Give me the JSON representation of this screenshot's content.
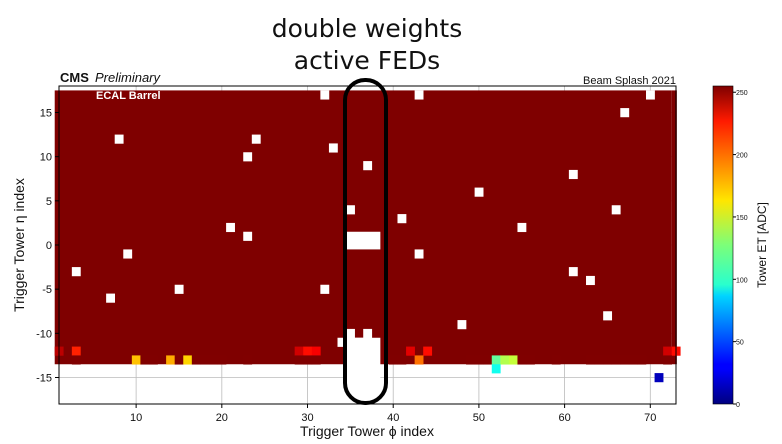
{
  "annotation": {
    "line1": "double weights",
    "line2": "active FEDs"
  },
  "header": {
    "cms": "CMS",
    "preliminary": "Preliminary",
    "run": "Beam Splash 2021",
    "inset": "ECAL Barrel"
  },
  "colorbar": {
    "label": "Tower ET [ADC]",
    "ticks": [
      "0",
      "50",
      "100",
      "150",
      "200",
      "250"
    ]
  },
  "chart_data": {
    "type": "heatmap",
    "title": "",
    "xlabel": "Trigger Tower ϕ index",
    "ylabel": "Trigger Tower η index",
    "xlim": [
      1,
      73
    ],
    "ylim": [
      -18,
      18
    ],
    "xticks": [
      10,
      20,
      30,
      40,
      50,
      60,
      70
    ],
    "yticks": [
      -15,
      -10,
      -5,
      0,
      5,
      10,
      15
    ],
    "zlim": [
      0,
      255
    ],
    "grid": true,
    "colormap": "jet",
    "background_value": 255,
    "filled_region": {
      "phi": [
        1,
        72
      ],
      "eta": [
        -13,
        17
      ],
      "value": 255
    },
    "empty_cells": [
      [
        32,
        17
      ],
      [
        43,
        17
      ],
      [
        70,
        17
      ],
      [
        67,
        15
      ],
      [
        24,
        12
      ],
      [
        8,
        12
      ],
      [
        33,
        11
      ],
      [
        23,
        10
      ],
      [
        37,
        9
      ],
      [
        61,
        8
      ],
      [
        66,
        4
      ],
      [
        35,
        4
      ],
      [
        50,
        6
      ],
      [
        41,
        3
      ],
      [
        21,
        2
      ],
      [
        55,
        2
      ],
      [
        23,
        1
      ],
      [
        9,
        -1
      ],
      [
        43,
        -1
      ],
      [
        3,
        -3
      ],
      [
        61,
        -3
      ],
      [
        63,
        -4
      ],
      [
        15,
        -5
      ],
      [
        32,
        -5
      ],
      [
        7,
        -6
      ],
      [
        65,
        -8
      ],
      [
        48,
        -9
      ],
      [
        35,
        -10
      ],
      [
        37,
        -10
      ],
      [
        34,
        -11
      ],
      [
        36,
        -11
      ]
    ],
    "empty_blocks": [
      {
        "phi": [
          35,
          38
        ],
        "eta": [
          0,
          1
        ]
      },
      {
        "phi": [
          35,
          38
        ],
        "eta": [
          -18,
          -11
        ]
      }
    ],
    "partial_row": {
      "eta": -12,
      "cells": [
        [
          1,
          240
        ],
        [
          3,
          215
        ],
        [
          29,
          235
        ],
        [
          30,
          220
        ],
        [
          31,
          225
        ],
        [
          42,
          230
        ],
        [
          44,
          220
        ],
        [
          72,
          235
        ],
        [
          73,
          220
        ]
      ]
    },
    "partial_row_low": {
      "eta": -13,
      "cells": [
        [
          3,
          255
        ],
        [
          10,
          175
        ],
        [
          11,
          255
        ],
        [
          12,
          255
        ],
        [
          14,
          180
        ],
        [
          15,
          255
        ],
        [
          16,
          170
        ],
        [
          17,
          255
        ],
        [
          18,
          255
        ],
        [
          19,
          255
        ],
        [
          20,
          255
        ],
        [
          23,
          255
        ],
        [
          29,
          255
        ],
        [
          30,
          255
        ],
        [
          31,
          255
        ],
        [
          36,
          255
        ],
        [
          40,
          255
        ],
        [
          41,
          255
        ],
        [
          43,
          195
        ],
        [
          49,
          255
        ],
        [
          50,
          255
        ],
        [
          51,
          255
        ],
        [
          52,
          120
        ],
        [
          53,
          140
        ],
        [
          54,
          145
        ],
        [
          55,
          255
        ],
        [
          56,
          255
        ],
        [
          59,
          255
        ],
        [
          63,
          255
        ],
        [
          64,
          255
        ],
        [
          65,
          255
        ],
        [
          66,
          255
        ],
        [
          67,
          255
        ],
        [
          68,
          255
        ],
        [
          69,
          255
        ],
        [
          72,
          255
        ]
      ]
    },
    "extra_cells": [
      [
        52,
        -14,
        100
      ],
      [
        71,
        -15,
        15
      ]
    ]
  }
}
